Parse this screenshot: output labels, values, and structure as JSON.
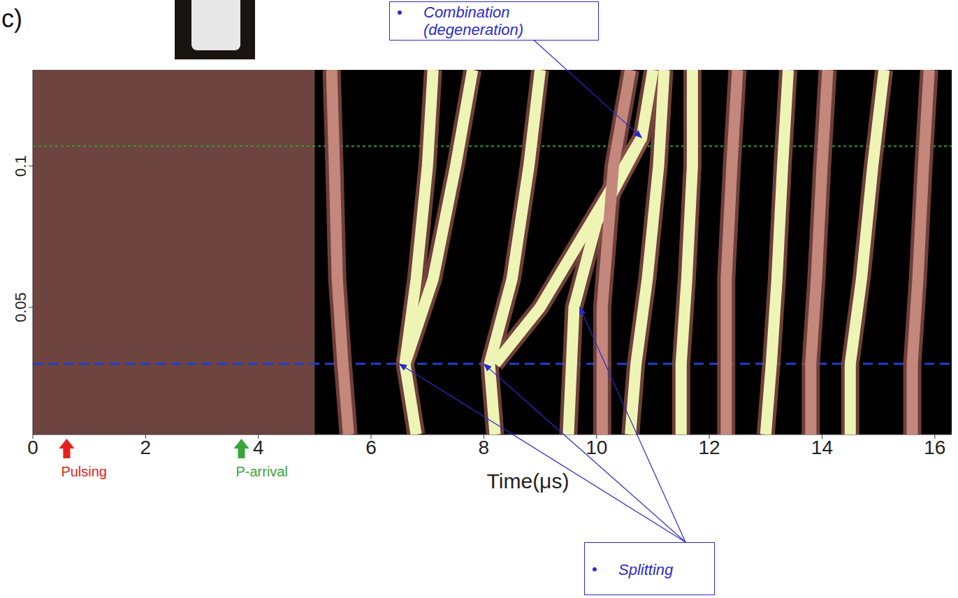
{
  "chart_data": {
    "type": "line",
    "panel": "c)",
    "x_label": "Time(μs)",
    "xlim": [
      0,
      16.3
    ],
    "xticks": [
      0,
      2,
      4,
      6,
      8,
      10,
      12,
      14,
      16
    ],
    "ylim": [
      0.005,
      0.134
    ],
    "yticks": [
      0.05,
      0.1
    ],
    "grid": false,
    "regions": [
      {
        "x": [
          0,
          5.0
        ],
        "color": "#6e4440"
      }
    ],
    "reference_lines": [
      {
        "y": 0.107,
        "color": "#2ca02c",
        "line_style": "dotted"
      },
      {
        "y": 0.03,
        "color": "#1f3fd0",
        "line_style": "dashed"
      }
    ],
    "series": [
      {
        "color": "#c4877c",
        "x": [
          5.6,
          5.5,
          5.4,
          5.35,
          5.3
        ],
        "values": [
          0.005,
          0.03,
          0.06,
          0.1,
          0.134
        ]
      },
      {
        "color": "#eef5b4",
        "x": [
          6.8,
          6.6,
          6.8,
          7.0,
          7.1
        ],
        "values": [
          0.005,
          0.03,
          0.06,
          0.1,
          0.134
        ]
      },
      {
        "color": "#eef5b4",
        "x": [
          6.6,
          7.1,
          7.5,
          7.8
        ],
        "values": [
          0.03,
          0.06,
          0.1,
          0.134
        ]
      },
      {
        "color": "#eef5b4",
        "x": [
          8.2,
          8.1,
          8.5,
          8.8,
          9.0
        ],
        "values": [
          0.005,
          0.03,
          0.06,
          0.1,
          0.134
        ]
      },
      {
        "color": "#eef5b4",
        "x": [
          8.2,
          9.0,
          9.9,
          10.8,
          11.0
        ],
        "values": [
          0.03,
          0.05,
          0.08,
          0.11,
          0.134
        ]
      },
      {
        "color": "#eef5b4",
        "x": [
          9.5,
          9.6,
          10.0,
          10.8
        ],
        "values": [
          0.005,
          0.05,
          0.08,
          0.11
        ]
      },
      {
        "color": "#c4877c",
        "x": [
          10.1,
          10.1,
          10.3,
          10.6
        ],
        "values": [
          0.005,
          0.05,
          0.1,
          0.134
        ]
      },
      {
        "color": "#eef5b4",
        "x": [
          10.6,
          10.7,
          10.9,
          11.1,
          11.2
        ],
        "values": [
          0.005,
          0.03,
          0.06,
          0.1,
          0.134
        ]
      },
      {
        "color": "#eef5b4",
        "x": [
          11.5,
          11.5,
          11.6,
          11.7,
          11.7
        ],
        "values": [
          0.005,
          0.03,
          0.06,
          0.1,
          0.134
        ]
      },
      {
        "color": "#c4877c",
        "x": [
          12.3,
          12.3,
          12.3,
          12.4,
          12.5
        ],
        "values": [
          0.005,
          0.03,
          0.06,
          0.1,
          0.134
        ]
      },
      {
        "color": "#eef5b4",
        "x": [
          13.0,
          13.1,
          13.2,
          13.3,
          13.4
        ],
        "values": [
          0.005,
          0.03,
          0.06,
          0.1,
          0.134
        ]
      },
      {
        "color": "#c4877c",
        "x": [
          13.8,
          13.8,
          13.9,
          14.0,
          14.1
        ],
        "values": [
          0.005,
          0.03,
          0.06,
          0.1,
          0.134
        ]
      },
      {
        "color": "#eef5b4",
        "x": [
          14.5,
          14.5,
          14.7,
          14.9,
          15.1
        ],
        "values": [
          0.005,
          0.03,
          0.06,
          0.1,
          0.134
        ]
      },
      {
        "color": "#c4877c",
        "x": [
          15.6,
          15.6,
          15.7,
          15.8,
          15.9
        ],
        "values": [
          0.005,
          0.03,
          0.06,
          0.1,
          0.134
        ]
      }
    ],
    "markers": [
      {
        "text": "Pulsing",
        "x": 0.6,
        "color": "#e8201c"
      },
      {
        "text": "P-arrival",
        "x": 3.7,
        "color": "#3aa53a"
      }
    ],
    "annotations": [
      {
        "bullet": "•",
        "lines": [
          "Combination",
          "(degeneration)"
        ],
        "points": [
          [
            10.8,
            0.11
          ]
        ]
      },
      {
        "bullet": "•",
        "lines": [
          "Splitting"
        ],
        "points": [
          [
            6.5,
            0.03
          ],
          [
            8.0,
            0.03
          ],
          [
            9.7,
            0.05
          ]
        ]
      }
    ]
  }
}
